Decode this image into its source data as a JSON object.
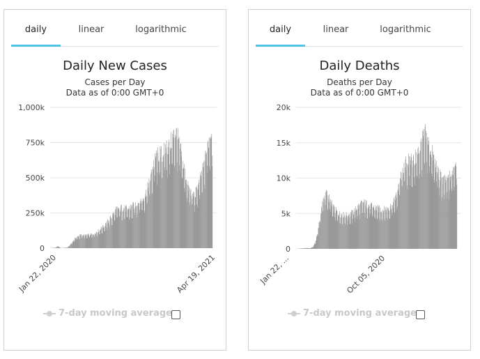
{
  "tabs": [
    "daily",
    "linear",
    "logarithmic"
  ],
  "legend_label": "7-day moving average",
  "colors": {
    "bar": "#999999",
    "grid": "#e6e6e6",
    "tab_active": "#4ec3e8"
  },
  "chart_data": [
    {
      "type": "bar",
      "title": "Daily New Cases",
      "subtitle": "Cases per Day",
      "subtitle2": "Data as of 0:00 GMT+0",
      "ylim": [
        0,
        1000000
      ],
      "yticks": [
        0,
        250000,
        500000,
        750000,
        1000000
      ],
      "ytick_labels": [
        "0",
        "250k",
        "500k",
        "750k",
        "1,000k"
      ],
      "x_tick_labels": [
        "Jan 22, 2020",
        "Apr 19, 2021"
      ],
      "grid": true,
      "anchors": [
        [
          "2020-01-22",
          0
        ],
        [
          "2020-01-27",
          2000
        ],
        [
          "2020-02-05",
          3000
        ],
        [
          "2020-02-12",
          14000
        ],
        [
          "2020-02-20",
          1000
        ],
        [
          "2020-03-01",
          2000
        ],
        [
          "2020-03-10",
          5000
        ],
        [
          "2020-03-20",
          30000
        ],
        [
          "2020-04-01",
          70000
        ],
        [
          "2020-04-15",
          90000
        ],
        [
          "2020-05-01",
          88000
        ],
        [
          "2020-05-20",
          95000
        ],
        [
          "2020-06-05",
          120000
        ],
        [
          "2020-06-25",
          165000
        ],
        [
          "2020-07-10",
          210000
        ],
        [
          "2020-07-25",
          265000
        ],
        [
          "2020-08-10",
          275000
        ],
        [
          "2020-08-25",
          265000
        ],
        [
          "2020-09-10",
          290000
        ],
        [
          "2020-09-25",
          315000
        ],
        [
          "2020-10-10",
          345000
        ],
        [
          "2020-10-20",
          410000
        ],
        [
          "2020-11-01",
          520000
        ],
        [
          "2020-11-10",
          620000
        ],
        [
          "2020-11-20",
          640000
        ],
        [
          "2020-12-01",
          640000
        ],
        [
          "2020-12-10",
          690000
        ],
        [
          "2020-12-20",
          700000
        ],
        [
          "2020-12-30",
          760000
        ],
        [
          "2021-01-07",
          790000
        ],
        [
          "2021-01-12",
          760000
        ],
        [
          "2021-01-22",
          640000
        ],
        [
          "2021-02-01",
          520000
        ],
        [
          "2021-02-10",
          420000
        ],
        [
          "2021-02-20",
          370000
        ],
        [
          "2021-03-01",
          360000
        ],
        [
          "2021-03-10",
          420000
        ],
        [
          "2021-03-20",
          500000
        ],
        [
          "2021-03-30",
          600000
        ],
        [
          "2021-04-05",
          700000
        ],
        [
          "2021-04-12",
          760000
        ],
        [
          "2021-04-19",
          820000
        ]
      ]
    },
    {
      "type": "bar",
      "title": "Daily Deaths",
      "subtitle": "Deaths per Day",
      "subtitle2": "Data as of 0:00 GMT+0",
      "ylim": [
        0,
        20000
      ],
      "yticks": [
        0,
        5000,
        10000,
        15000,
        20000
      ],
      "ytick_labels": [
        "0",
        "5k",
        "10k",
        "15k",
        "20k"
      ],
      "x_tick_labels": [
        "Jan 22, ...",
        "Oct 05, 2020"
      ],
      "grid": true,
      "anchors": [
        [
          "2020-01-22",
          0
        ],
        [
          "2020-02-05",
          60
        ],
        [
          "2020-02-20",
          120
        ],
        [
          "2020-03-01",
          80
        ],
        [
          "2020-03-10",
          300
        ],
        [
          "2020-03-18",
          1200
        ],
        [
          "2020-03-28",
          4000
        ],
        [
          "2020-04-05",
          6500
        ],
        [
          "2020-04-15",
          7600
        ],
        [
          "2020-04-25",
          6800
        ],
        [
          "2020-05-05",
          5600
        ],
        [
          "2020-05-20",
          4800
        ],
        [
          "2020-06-05",
          4600
        ],
        [
          "2020-06-20",
          4700
        ],
        [
          "2020-07-01",
          5000
        ],
        [
          "2020-07-15",
          5800
        ],
        [
          "2020-07-30",
          6300
        ],
        [
          "2020-08-10",
          6000
        ],
        [
          "2020-08-25",
          5700
        ],
        [
          "2020-09-10",
          5400
        ],
        [
          "2020-09-25",
          5300
        ],
        [
          "2020-10-05",
          5500
        ],
        [
          "2020-10-20",
          6000
        ],
        [
          "2020-11-01",
          7500
        ],
        [
          "2020-11-10",
          9500
        ],
        [
          "2020-11-20",
          11200
        ],
        [
          "2020-12-01",
          11800
        ],
        [
          "2020-12-10",
          12200
        ],
        [
          "2020-12-20",
          12000
        ],
        [
          "2020-12-30",
          13000
        ],
        [
          "2021-01-10",
          14500
        ],
        [
          "2021-01-20",
          15500
        ],
        [
          "2021-01-28",
          14500
        ],
        [
          "2021-02-05",
          13500
        ],
        [
          "2021-02-15",
          12000
        ],
        [
          "2021-02-25",
          10500
        ],
        [
          "2021-03-05",
          9700
        ],
        [
          "2021-03-15",
          9200
        ],
        [
          "2021-03-25",
          9500
        ],
        [
          "2021-04-05",
          10200
        ],
        [
          "2021-04-12",
          11500
        ],
        [
          "2021-04-19",
          12500
        ]
      ]
    }
  ]
}
